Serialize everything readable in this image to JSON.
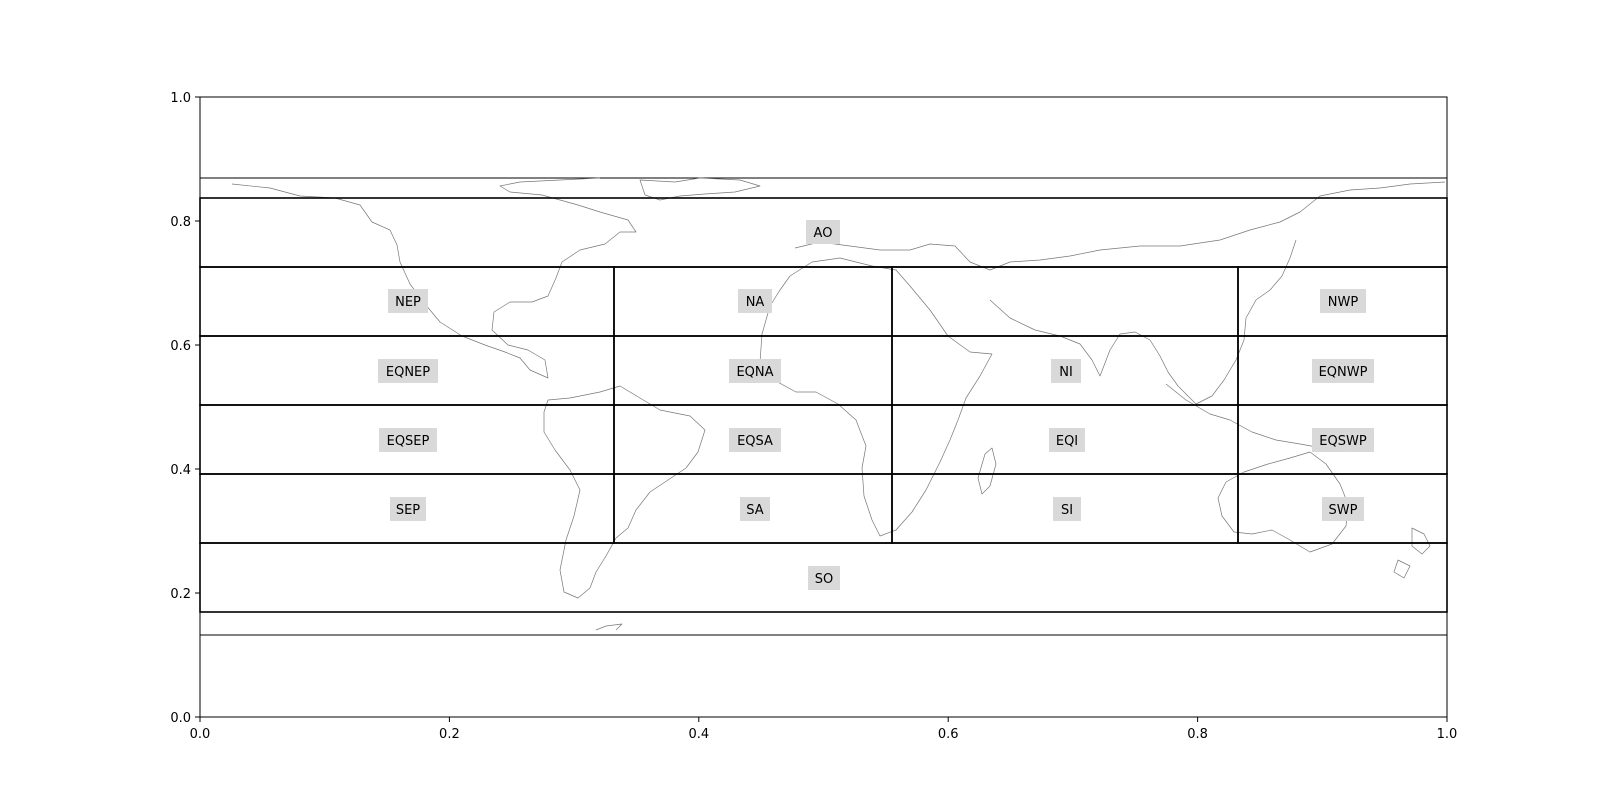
{
  "map": {
    "x_ticks": [
      "0.0",
      "0.2",
      "0.4",
      "0.6",
      "0.8",
      "1.0"
    ],
    "y_ticks": [
      "0.0",
      "0.2",
      "0.4",
      "0.6",
      "0.8",
      "1.0"
    ],
    "colors": {
      "region_box": "#000000",
      "label_bg": "#d9d9d9",
      "coastline": "#777777"
    },
    "regions": [
      {
        "id": "AO",
        "label": "AO"
      },
      {
        "id": "NEP",
        "label": "NEP"
      },
      {
        "id": "NA",
        "label": "NA"
      },
      {
        "id": "NWP",
        "label": "NWP"
      },
      {
        "id": "EQNEP",
        "label": "EQNEP"
      },
      {
        "id": "EQNA",
        "label": "EQNA"
      },
      {
        "id": "NI",
        "label": "NI"
      },
      {
        "id": "EQNWP",
        "label": "EQNWP"
      },
      {
        "id": "EQSEP",
        "label": "EQSEP"
      },
      {
        "id": "EQSA",
        "label": "EQSA"
      },
      {
        "id": "EQI",
        "label": "EQI"
      },
      {
        "id": "EQSWP",
        "label": "EQSWP"
      },
      {
        "id": "SEP",
        "label": "SEP"
      },
      {
        "id": "SA",
        "label": "SA"
      },
      {
        "id": "SI",
        "label": "SI"
      },
      {
        "id": "SWP",
        "label": "SWP"
      },
      {
        "id": "SO",
        "label": "SO"
      }
    ]
  }
}
